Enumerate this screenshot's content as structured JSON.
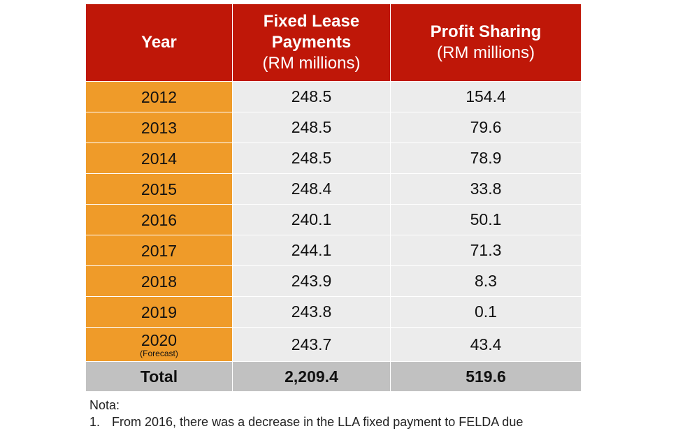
{
  "headers": {
    "year": "Year",
    "fixed_bold_1": "Fixed Lease",
    "fixed_bold_2": "Payments",
    "fixed_unit": "(RM millions)",
    "profit_bold": "Profit Sharing",
    "profit_unit": "(RM millions)"
  },
  "rows": [
    {
      "year": "2012",
      "note": "",
      "fixed": "248.5",
      "profit": "154.4"
    },
    {
      "year": "2013",
      "note": "",
      "fixed": "248.5",
      "profit": "79.6"
    },
    {
      "year": "2014",
      "note": "",
      "fixed": "248.5",
      "profit": "78.9"
    },
    {
      "year": "2015",
      "note": "",
      "fixed": "248.4",
      "profit": "33.8"
    },
    {
      "year": "2016",
      "note": "",
      "fixed": "240.1",
      "profit": "50.1"
    },
    {
      "year": "2017",
      "note": "",
      "fixed": "244.1",
      "profit": "71.3"
    },
    {
      "year": "2018",
      "note": "",
      "fixed": "243.9",
      "profit": "8.3"
    },
    {
      "year": "2019",
      "note": "",
      "fixed": "243.8",
      "profit": "0.1"
    },
    {
      "year": "2020",
      "note": "(Forecast)",
      "fixed": "243.7",
      "profit": "43.4"
    }
  ],
  "total": {
    "label": "Total",
    "fixed": "2,209.4",
    "profit": "519.6"
  },
  "notes": {
    "title": "Nota:",
    "items": [
      {
        "num": "1.",
        "text": "From 2016, there was a decrease in the LLA fixed payment to FELDA due"
      }
    ]
  },
  "colors": {
    "header_bg": "#bf1708",
    "year_bg": "#ef9b29",
    "cell_bg": "#ececec",
    "total_bg": "#c1c1c1"
  }
}
